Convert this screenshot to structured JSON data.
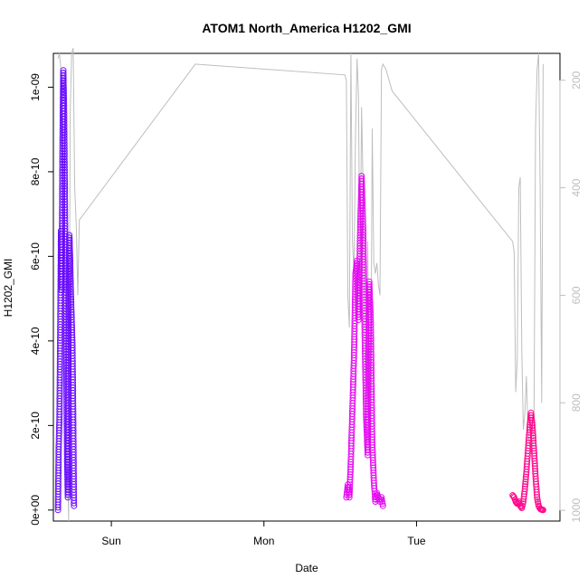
{
  "chart_data": {
    "type": "scatter",
    "title": "ATOM1 North_America H1202_GMI",
    "xlabel": "Date",
    "ylabel": "H1202_GMI",
    "x_ticks": [
      "Sun",
      "Mon",
      "Tue"
    ],
    "x_tick_positions_days": [
      0,
      1,
      2
    ],
    "xlim_days": [
      -0.38,
      2.94
    ],
    "ylim": [
      -2.6e-11,
      1.08e-09
    ],
    "y_ticks": [
      0,
      2e-10,
      4e-10,
      6e-10,
      8e-10,
      1e-09
    ],
    "y_tick_labels": [
      "0e+00",
      "2e-10",
      "4e-10",
      "6e-10",
      "8e-10",
      "1e-09"
    ],
    "y2_axis": {
      "reversed": true,
      "lim": [
        1020,
        150
      ],
      "ticks": [
        200,
        400,
        600,
        800,
        1000
      ],
      "color": "#bebebe"
    },
    "grid": false,
    "series": [
      {
        "marker": "open-circle",
        "color": "#6a0dff",
        "x": [
          -0.35,
          -0.345,
          -0.34,
          -0.335,
          -0.33,
          -0.325,
          -0.32,
          -0.315,
          -0.31,
          -0.305,
          -0.3,
          -0.295,
          -0.29,
          -0.285,
          -0.28,
          -0.275,
          -0.27,
          -0.265,
          -0.26,
          -0.255,
          -0.25,
          -0.245
        ],
        "y": [
          0.0,
          1.5e-10,
          2.2e-10,
          4.2e-10,
          6.6e-10,
          5.2e-10,
          8.8e-10,
          1.04e-09,
          9.5e-10,
          7.6e-10,
          5.4e-10,
          3.3e-10,
          1.2e-10,
          3e-11,
          5.2e-10,
          6.5e-10,
          5.9e-10,
          5.1e-10,
          4.5e-10,
          3.9e-10,
          2.2e-10,
          1e-11
        ]
      },
      {
        "marker": "open-circle",
        "color": "#e40cf0",
        "x": [
          1.54,
          1.55,
          1.56,
          1.57,
          1.58,
          1.59,
          1.6,
          1.61,
          1.62,
          1.63,
          1.64,
          1.65,
          1.66,
          1.67,
          1.68,
          1.69,
          1.7,
          1.71,
          1.72,
          1.73,
          1.74,
          1.75,
          1.76,
          1.77,
          1.78
        ],
        "y": [
          3e-11,
          6e-11,
          3e-11,
          1.2e-10,
          2.4e-10,
          3.6e-10,
          5.6e-10,
          5.9e-10,
          4.5e-10,
          6.5e-10,
          7.9e-10,
          6.7e-10,
          4.2e-10,
          2.2e-10,
          1.3e-10,
          5.4e-10,
          4.5e-10,
          1.6e-10,
          7e-11,
          2e-11,
          4e-11,
          3e-11,
          2e-11,
          3e-11,
          1e-11
        ]
      },
      {
        "marker": "open-circle",
        "color": "#ff0a8c",
        "x": [
          2.63,
          2.64,
          2.65,
          2.66,
          2.67,
          2.68,
          2.69,
          2.7,
          2.71,
          2.72,
          2.73,
          2.74,
          2.75,
          2.76,
          2.77,
          2.78,
          2.79,
          2.8,
          2.81,
          2.82,
          2.83
        ],
        "y": [
          3.5e-11,
          3e-11,
          2e-11,
          1.5e-11,
          2e-11,
          1e-11,
          5e-12,
          2e-11,
          5e-11,
          9e-11,
          1.4e-10,
          1.9e-10,
          2.3e-10,
          2e-10,
          1.4e-10,
          8e-11,
          3e-11,
          1e-11,
          3e-12,
          1e-12,
          0.0
        ]
      }
    ],
    "line_series_y2": {
      "color": "#bebebe",
      "x": [
        -0.35,
        -0.34,
        -0.33,
        -0.32,
        -0.31,
        -0.3,
        -0.29,
        -0.28,
        -0.27,
        -0.26,
        -0.25,
        -0.24,
        -0.23,
        -0.22,
        -0.21,
        0.55,
        1.53,
        1.54,
        1.55,
        1.56,
        1.57,
        1.58,
        1.59,
        1.6,
        1.61,
        1.62,
        1.63,
        1.64,
        1.65,
        1.66,
        1.67,
        1.68,
        1.69,
        1.7,
        1.71,
        1.72,
        1.73,
        1.74,
        1.75,
        1.76,
        1.77,
        1.78,
        1.79,
        1.8,
        1.81,
        1.82,
        1.83,
        1.84,
        2.63,
        2.64,
        2.65,
        2.66,
        2.67,
        2.68,
        2.69,
        2.7,
        2.71,
        2.72,
        2.73,
        2.74,
        2.75,
        2.76,
        2.77,
        2.78,
        2.79,
        2.8,
        2.81,
        2.82,
        2.83
      ],
      "y": [
        160,
        150,
        180,
        260,
        430,
        560,
        880,
        1020,
        260,
        150,
        140,
        400,
        470,
        600,
        460,
        170,
        190,
        200,
        600,
        660,
        150,
        500,
        560,
        300,
        160,
        230,
        600,
        250,
        400,
        680,
        830,
        500,
        840,
        800,
        290,
        540,
        560,
        540,
        580,
        600,
        180,
        170,
        175,
        180,
        190,
        200,
        210,
        220,
        500,
        520,
        780,
        720,
        400,
        380,
        700,
        850,
        820,
        750,
        850,
        880,
        880,
        880,
        840,
        290,
        180,
        150,
        400,
        800,
        170
      ]
    }
  }
}
